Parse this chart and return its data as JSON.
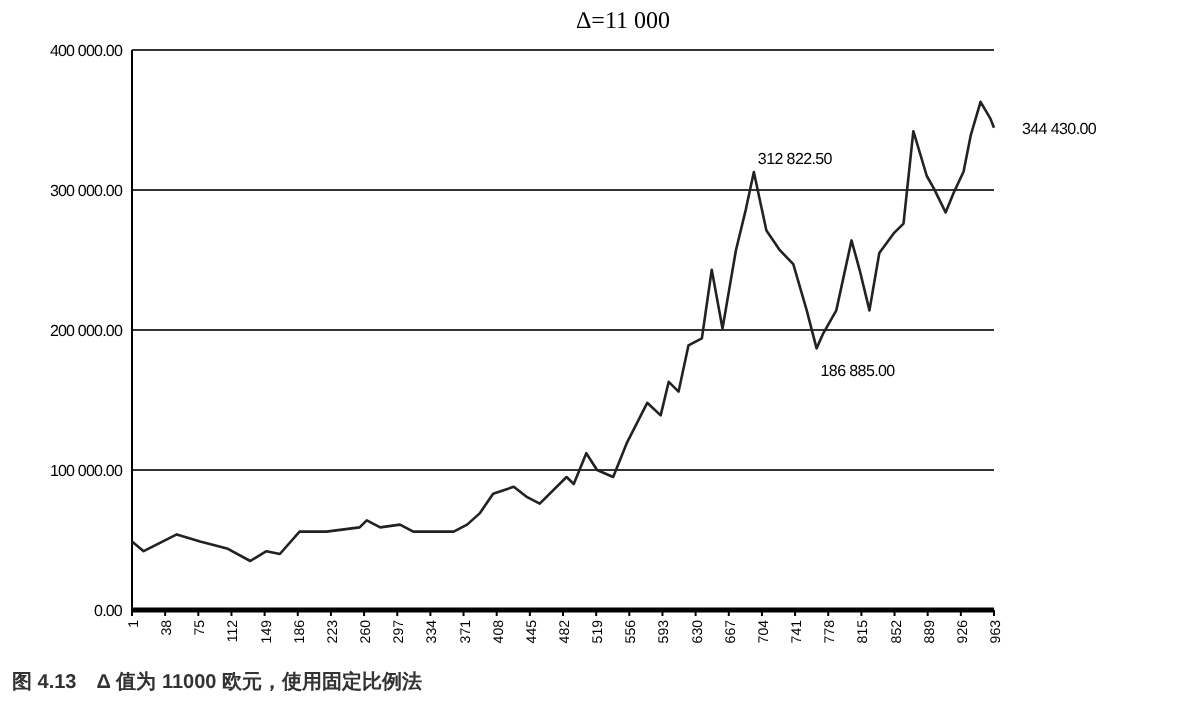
{
  "chart_data": {
    "type": "line",
    "title": "Δ=11 000",
    "x": [
      1,
      14,
      51,
      77,
      107,
      133,
      151,
      166,
      188,
      218,
      255,
      263,
      278,
      300,
      315,
      360,
      375,
      389,
      404,
      427,
      441,
      456,
      486,
      494,
      508,
      520,
      538,
      553,
      576,
      591,
      600,
      611,
      622,
      637,
      648,
      660,
      675,
      686,
      695,
      709,
      724,
      739,
      754,
      765,
      772,
      787,
      804,
      813,
      824,
      835,
      851,
      862,
      873,
      888,
      896,
      909,
      918,
      929,
      937,
      948,
      959,
      963
    ],
    "series": [
      {
        "color": "#222222",
        "values": [
          49000,
          42000,
          54000,
          49000,
          44000,
          35000,
          42000,
          40000,
          56000,
          56000,
          59000,
          64000,
          59000,
          61000,
          56000,
          56000,
          61000,
          69000,
          83000,
          88000,
          81000,
          76000,
          95000,
          90000,
          112000,
          100000,
          95000,
          119000,
          148000,
          139000,
          163000,
          156000,
          189000,
          194000,
          243000,
          201000,
          257000,
          286000,
          312822.5,
          271000,
          257000,
          247000,
          214000,
          186885,
          197000,
          214000,
          264000,
          243000,
          214000,
          255000,
          269000,
          276000,
          342000,
          310000,
          301000,
          284000,
          298000,
          313000,
          339000,
          363000,
          351000,
          344430
        ]
      }
    ],
    "xlim": [
      1,
      963
    ],
    "ylim": [
      0,
      400000
    ],
    "xticks": [
      1,
      38,
      75,
      112,
      149,
      186,
      223,
      260,
      297,
      334,
      371,
      408,
      445,
      482,
      519,
      556,
      593,
      630,
      667,
      704,
      741,
      778,
      815,
      852,
      889,
      926,
      963
    ],
    "yticks": [
      {
        "value": 0,
        "label": "0.00"
      },
      {
        "value": 100000,
        "label": "100 000.00"
      },
      {
        "value": 200000,
        "label": "200 000.00"
      },
      {
        "value": 300000,
        "label": "300 000.00"
      },
      {
        "value": 400000,
        "label": "400 000.00"
      }
    ],
    "grid": "y",
    "marker": "none",
    "line_style": "solid",
    "annotations": [
      {
        "text": "312 822.50",
        "x": 695,
        "y": 312822.5
      },
      {
        "text": "186 885.00",
        "x": 765,
        "y": 186885
      },
      {
        "text": "344 430.00",
        "x": 963,
        "y": 344430
      },
      "图 4.13　Δ 值为 11000 欧元，使用固定比例法"
    ]
  }
}
